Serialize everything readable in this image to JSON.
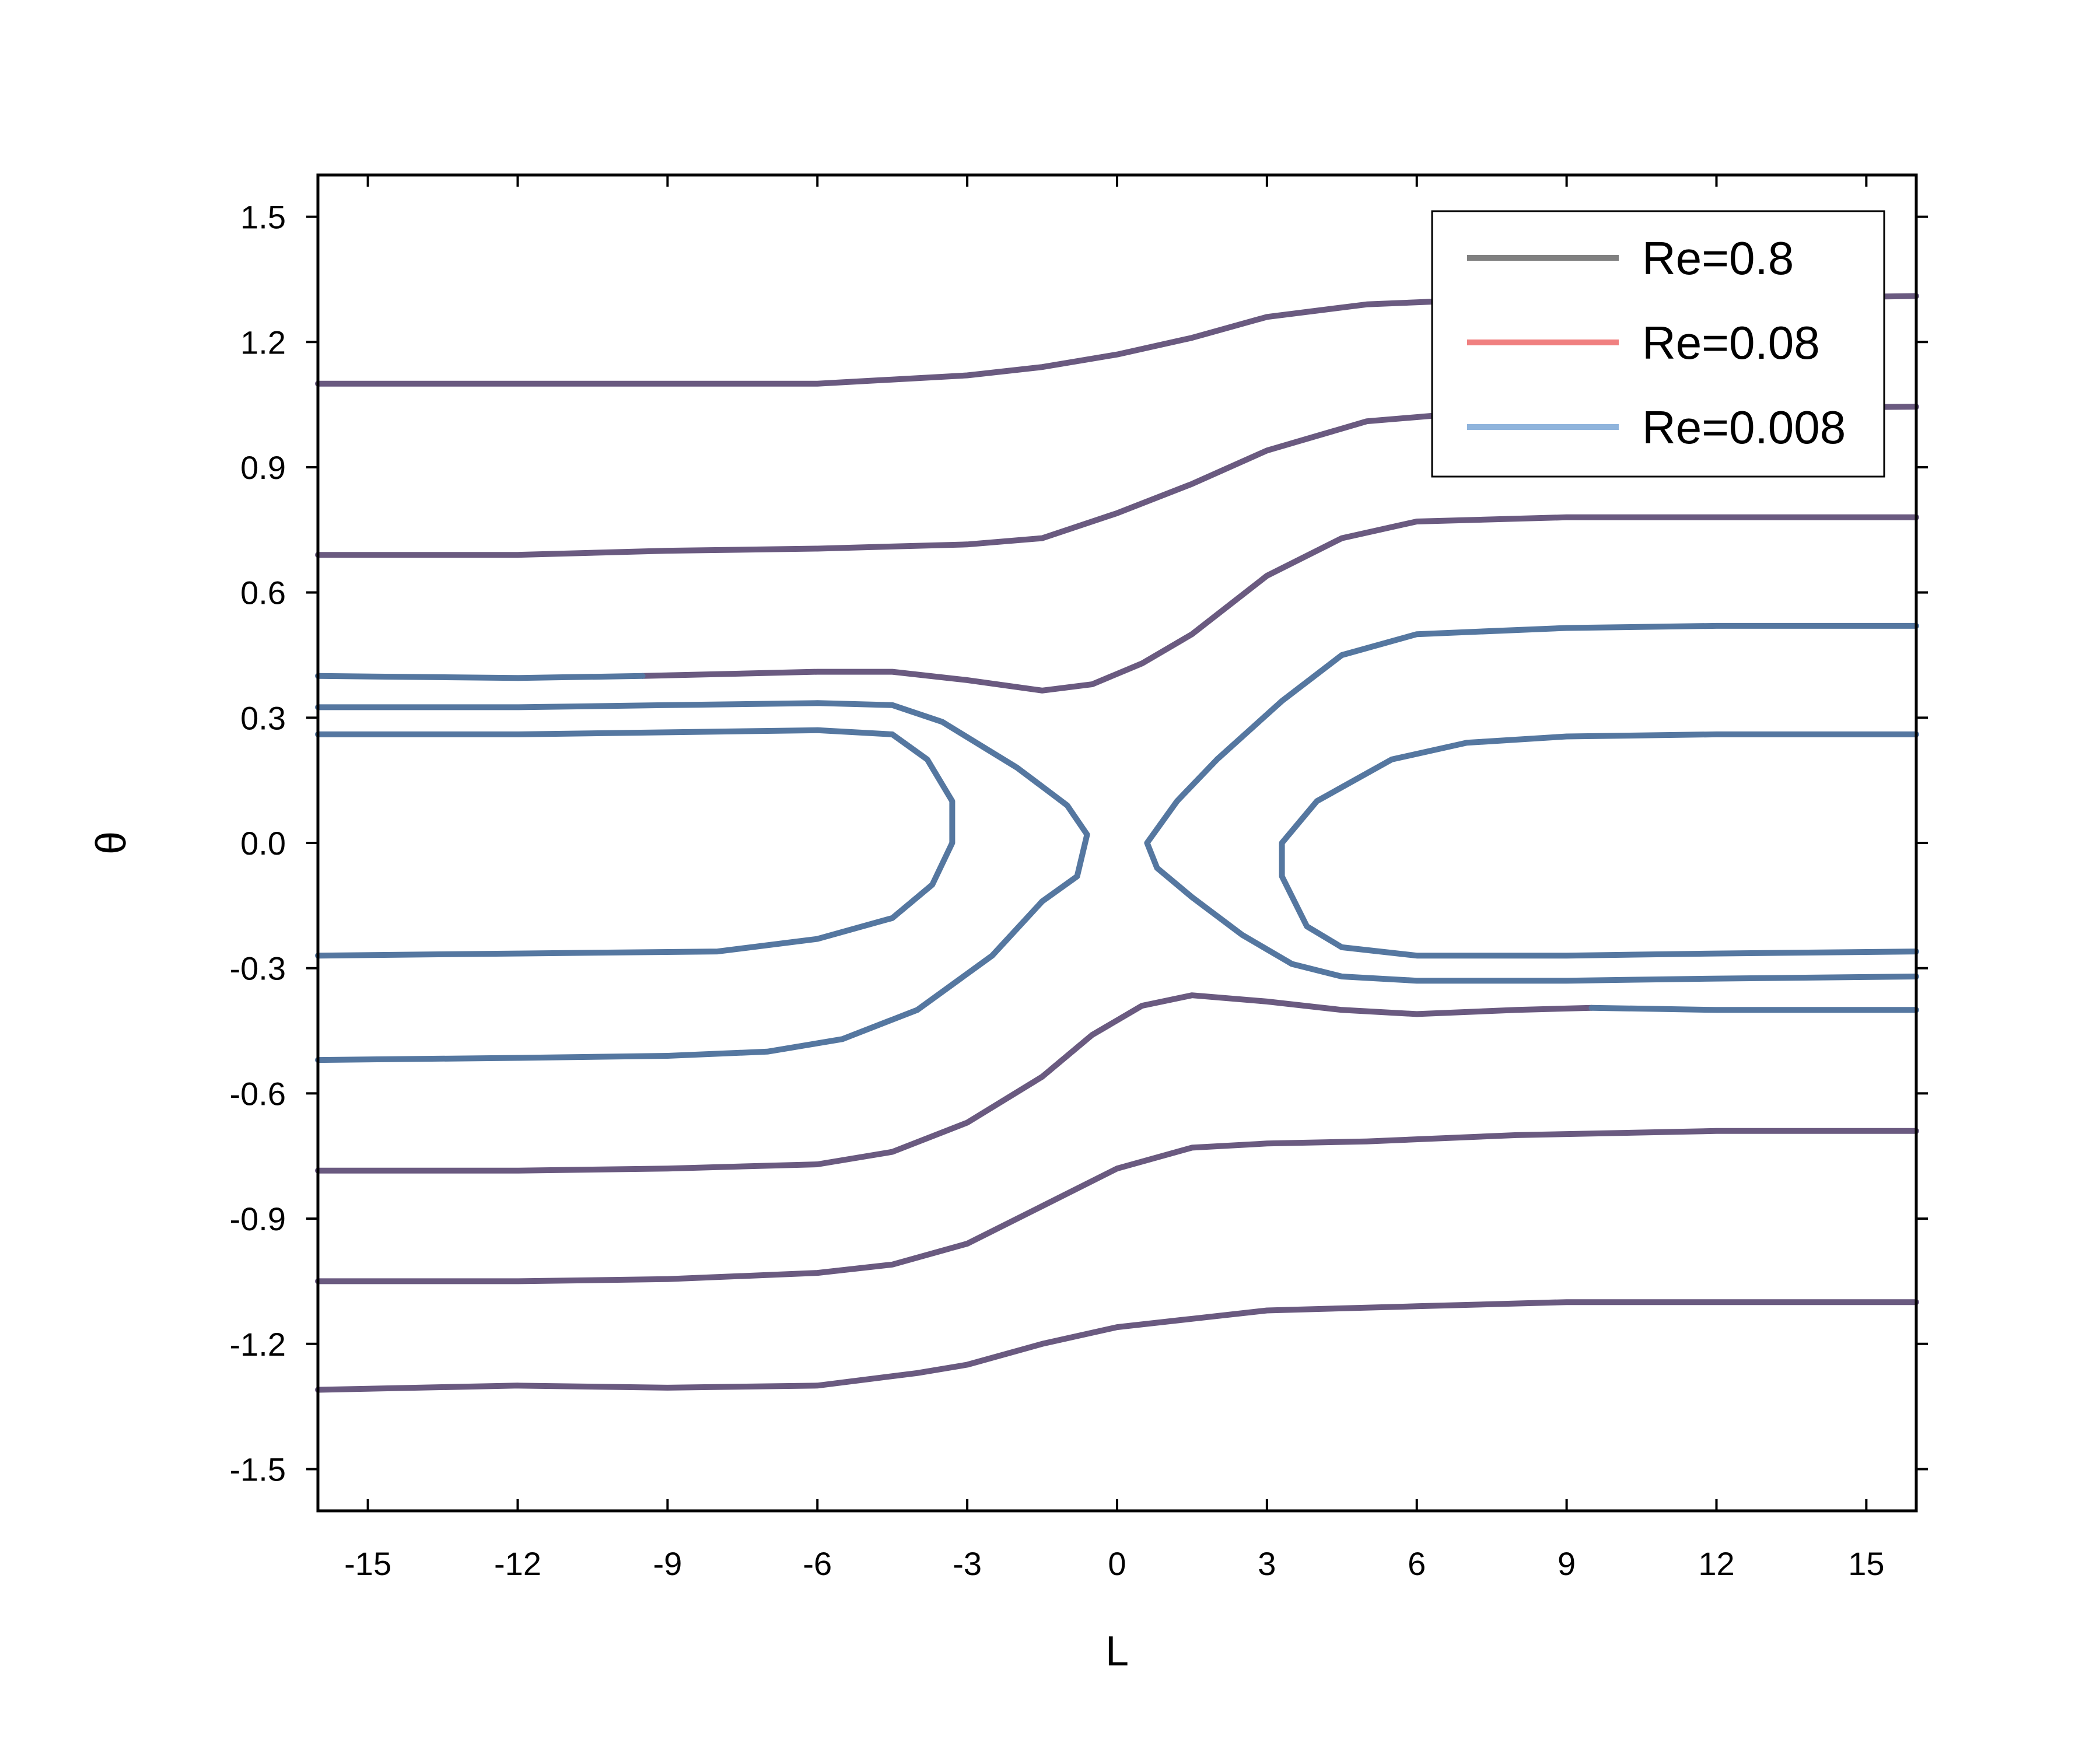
{
  "chart_data": {
    "type": "line",
    "title": "",
    "xlabel": "L",
    "ylabel": "θ",
    "xlim": [
      -16,
      16
    ],
    "ylim": [
      -1.6,
      1.6
    ],
    "xticks": [
      -15,
      -12,
      -9,
      -6,
      -3,
      0,
      3,
      6,
      9,
      12,
      15
    ],
    "yticks": [
      1.5,
      1.2,
      0.9,
      0.6,
      0.3,
      0.0,
      -0.3,
      -0.6,
      -0.9,
      -1.2,
      -1.5
    ],
    "xtick_labels": [
      "-15",
      "-12",
      "-9",
      "-6",
      "-3",
      "0",
      "3",
      "6",
      "9",
      "12",
      "15"
    ],
    "ytick_labels": [
      "1.5",
      "1.2",
      "0.9",
      "0.6",
      "0.3",
      "0.0",
      "-0.3",
      "-0.6",
      "-0.9",
      "-1.2",
      "-1.5"
    ],
    "grid": false,
    "legend_position": "top-right",
    "series": [
      {
        "name": "Re=0.8",
        "color": "#808080"
      },
      {
        "name": "Re=0.08",
        "color": "#f08080"
      },
      {
        "name": "Re=0.008",
        "color": "#8fb4dc"
      }
    ],
    "overlap_color": "#6a5a80",
    "contours": [
      {
        "color": "#6a5a80",
        "points": [
          [
            -16,
            1.1
          ],
          [
            -12,
            1.1
          ],
          [
            -6,
            1.1
          ],
          [
            -3,
            1.12
          ],
          [
            -1.5,
            1.14
          ],
          [
            0,
            1.17
          ],
          [
            1.5,
            1.21
          ],
          [
            3,
            1.26
          ],
          [
            5,
            1.29
          ],
          [
            7,
            1.3
          ],
          [
            10,
            1.3
          ],
          [
            16,
            1.31
          ]
        ]
      },
      {
        "color": "#6a5a80",
        "points": [
          [
            -16,
            0.69
          ],
          [
            -12,
            0.69
          ],
          [
            -9,
            0.7
          ],
          [
            -6,
            0.705
          ],
          [
            -3,
            0.715
          ],
          [
            -1.5,
            0.73
          ],
          [
            0,
            0.79
          ],
          [
            1.5,
            0.86
          ],
          [
            3,
            0.94
          ],
          [
            5,
            1.01
          ],
          [
            7,
            1.03
          ],
          [
            10,
            1.04
          ],
          [
            16,
            1.045
          ]
        ]
      },
      {
        "color": "#6a5a80",
        "points": [
          [
            -9.5,
            0.4
          ],
          [
            -6,
            0.41
          ],
          [
            -4.5,
            0.41
          ],
          [
            -3,
            0.39
          ],
          [
            -1.5,
            0.365
          ],
          [
            -0.5,
            0.38
          ],
          [
            0.5,
            0.43
          ],
          [
            1.5,
            0.5
          ],
          [
            3,
            0.64
          ],
          [
            4.5,
            0.73
          ],
          [
            6,
            0.77
          ],
          [
            9,
            0.78
          ],
          [
            12,
            0.78
          ],
          [
            16,
            0.78
          ]
        ]
      },
      {
        "color": "#6a5a80",
        "points": [
          [
            -16,
            -0.785
          ],
          [
            -12,
            -0.785
          ],
          [
            -9,
            -0.78
          ],
          [
            -6,
            -0.77
          ],
          [
            -4.5,
            -0.74
          ],
          [
            -3,
            -0.67
          ],
          [
            -1.5,
            -0.56
          ],
          [
            -0.5,
            -0.46
          ],
          [
            0.5,
            -0.39
          ],
          [
            1.5,
            -0.365
          ],
          [
            3,
            -0.38
          ],
          [
            4.5,
            -0.4
          ],
          [
            6,
            -0.41
          ],
          [
            8,
            -0.4
          ],
          [
            9.5,
            -0.395
          ]
        ]
      },
      {
        "color": "#6a5a80",
        "points": [
          [
            -16,
            -1.05
          ],
          [
            -12,
            -1.05
          ],
          [
            -9,
            -1.045
          ],
          [
            -6,
            -1.03
          ],
          [
            -4.5,
            -1.01
          ],
          [
            -3,
            -0.96
          ],
          [
            -1.5,
            -0.87
          ],
          [
            0,
            -0.78
          ],
          [
            1.5,
            -0.73
          ],
          [
            3,
            -0.72
          ],
          [
            5,
            -0.715
          ],
          [
            8,
            -0.7
          ],
          [
            12,
            -0.69
          ],
          [
            16,
            -0.69
          ]
        ]
      },
      {
        "color": "#6a5a80",
        "points": [
          [
            -16,
            -1.31
          ],
          [
            -12,
            -1.3
          ],
          [
            -9,
            -1.305
          ],
          [
            -6,
            -1.3
          ],
          [
            -4,
            -1.27
          ],
          [
            -3,
            -1.25
          ],
          [
            -1.5,
            -1.2
          ],
          [
            0,
            -1.16
          ],
          [
            1.5,
            -1.14
          ],
          [
            3,
            -1.12
          ],
          [
            6,
            -1.11
          ],
          [
            9,
            -1.1
          ],
          [
            12,
            -1.1
          ],
          [
            16,
            -1.1
          ]
        ]
      },
      {
        "color": "#5577a0",
        "points": [
          [
            -16,
            0.4
          ],
          [
            -12,
            0.395
          ],
          [
            -9.5,
            0.4
          ]
        ]
      },
      {
        "color": "#5577a0",
        "points": [
          [
            9.5,
            -0.395
          ],
          [
            12,
            -0.4
          ],
          [
            16,
            -0.4
          ]
        ]
      },
      {
        "color": "#5577a0",
        "points": [
          [
            -16,
            0.325
          ],
          [
            -12,
            0.325
          ],
          [
            -9,
            0.33
          ],
          [
            -6,
            0.335
          ],
          [
            -4.5,
            0.33
          ],
          [
            -3.5,
            0.29
          ],
          [
            -2,
            0.18
          ],
          [
            -1,
            0.09
          ],
          [
            -0.6,
            0.02
          ],
          [
            -0.8,
            -0.08
          ],
          [
            -1.5,
            -0.14
          ],
          [
            -2.5,
            -0.27
          ],
          [
            -4,
            -0.4
          ],
          [
            -5.5,
            -0.47
          ],
          [
            -7,
            -0.5
          ],
          [
            -9,
            -0.51
          ],
          [
            -12,
            -0.515
          ],
          [
            -16,
            -0.52
          ]
        ]
      },
      {
        "color": "#5577a0",
        "points": [
          [
            -16,
            0.26
          ],
          [
            -12,
            0.26
          ],
          [
            -9,
            0.265
          ],
          [
            -6,
            0.27
          ],
          [
            -4.5,
            0.26
          ],
          [
            -3.8,
            0.2
          ],
          [
            -3.3,
            0.1
          ],
          [
            -3.3,
            0.0
          ],
          [
            -3.7,
            -0.1
          ],
          [
            -4.5,
            -0.18
          ],
          [
            -6,
            -0.23
          ],
          [
            -8,
            -0.26
          ],
          [
            -12,
            -0.265
          ],
          [
            -16,
            -0.27
          ]
        ]
      },
      {
        "color": "#5577a0",
        "points": [
          [
            16,
            0.52
          ],
          [
            12,
            0.52
          ],
          [
            9,
            0.515
          ],
          [
            6,
            0.5
          ],
          [
            4.5,
            0.45
          ],
          [
            3.3,
            0.34
          ],
          [
            2,
            0.2
          ],
          [
            1.2,
            0.1
          ],
          [
            0.6,
            0.0
          ],
          [
            0.8,
            -0.06
          ],
          [
            1.5,
            -0.13
          ],
          [
            2.5,
            -0.22
          ],
          [
            3.5,
            -0.29
          ],
          [
            4.5,
            -0.32
          ],
          [
            6,
            -0.33
          ],
          [
            9,
            -0.33
          ],
          [
            12,
            -0.325
          ],
          [
            16,
            -0.32
          ]
        ]
      },
      {
        "color": "#5577a0",
        "points": [
          [
            16,
            0.26
          ],
          [
            12,
            0.26
          ],
          [
            9,
            0.255
          ],
          [
            7,
            0.24
          ],
          [
            5.5,
            0.2
          ],
          [
            4,
            0.1
          ],
          [
            3.3,
            0.0
          ],
          [
            3.3,
            -0.08
          ],
          [
            3.8,
            -0.2
          ],
          [
            4.5,
            -0.25
          ],
          [
            6,
            -0.27
          ],
          [
            9,
            -0.27
          ],
          [
            12,
            -0.265
          ],
          [
            16,
            -0.26
          ]
        ]
      }
    ]
  }
}
